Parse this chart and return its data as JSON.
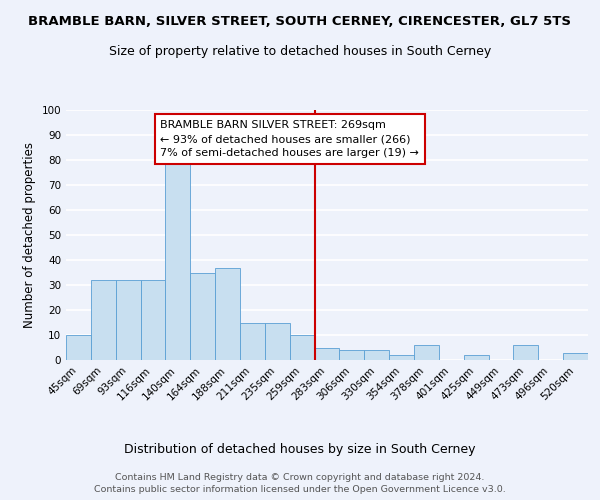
{
  "title": "BRAMBLE BARN, SILVER STREET, SOUTH CERNEY, CIRENCESTER, GL7 5TS",
  "subtitle": "Size of property relative to detached houses in South Cerney",
  "xlabel": "Distribution of detached houses by size in South Cerney",
  "ylabel": "Number of detached properties",
  "bin_labels": [
    "45sqm",
    "69sqm",
    "93sqm",
    "116sqm",
    "140sqm",
    "164sqm",
    "188sqm",
    "211sqm",
    "235sqm",
    "259sqm",
    "283sqm",
    "306sqm",
    "330sqm",
    "354sqm",
    "378sqm",
    "401sqm",
    "425sqm",
    "449sqm",
    "473sqm",
    "496sqm",
    "520sqm"
  ],
  "bar_heights": [
    10,
    32,
    32,
    32,
    79,
    35,
    37,
    15,
    15,
    10,
    5,
    4,
    4,
    2,
    6,
    0,
    2,
    0,
    6,
    0,
    3
  ],
  "bar_color": "#c8dff0",
  "bar_edge_color": "#5a9fd4",
  "vline_color": "#cc0000",
  "annotation_text": "BRAMBLE BARN SILVER STREET: 269sqm\n← 93% of detached houses are smaller (266)\n7% of semi-detached houses are larger (19) →",
  "annotation_box_color": "#ffffff",
  "annotation_box_edge": "#cc0000",
  "ylim": [
    0,
    100
  ],
  "yticks": [
    0,
    10,
    20,
    30,
    40,
    50,
    60,
    70,
    80,
    90,
    100
  ],
  "footer_text": "Contains HM Land Registry data © Crown copyright and database right 2024.\nContains public sector information licensed under the Open Government Licence v3.0.",
  "background_color": "#eef2fb",
  "grid_color": "#ffffff",
  "title_fontsize": 9.5,
  "subtitle_fontsize": 9.0,
  "xlabel_fontsize": 9.0,
  "ylabel_fontsize": 8.5,
  "tick_fontsize": 7.5,
  "annotation_fontsize": 8.0,
  "footer_fontsize": 6.8
}
